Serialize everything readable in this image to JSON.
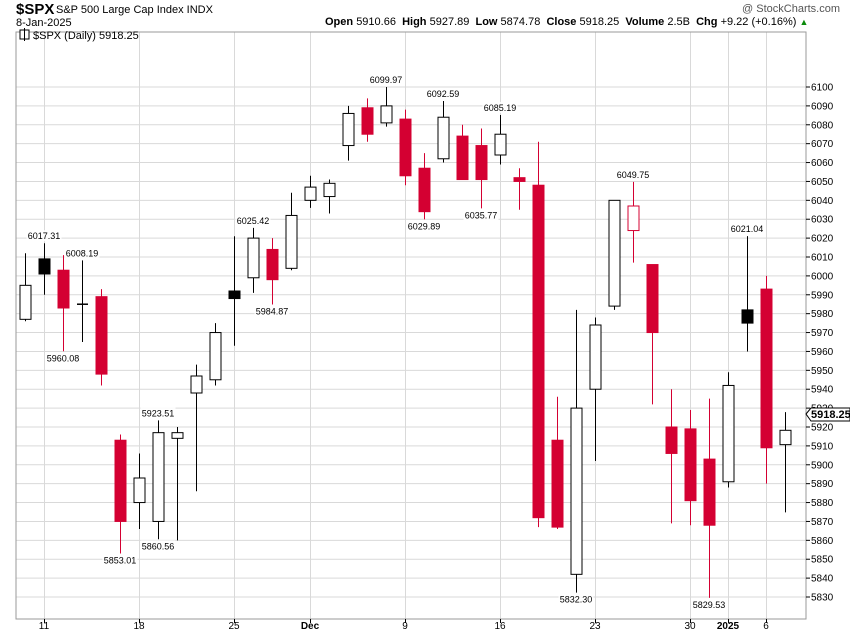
{
  "header": {
    "symbol": "$SPX",
    "description": "S&P 500 Large Cap Index  INDX",
    "credit": "@ StockCharts.com",
    "date": "8-Jan-2025",
    "open_label": "Open",
    "open": "5910.66",
    "high_label": "High",
    "high": "5927.89",
    "low_label": "Low",
    "low": "5874.78",
    "close_label": "Close",
    "close": "5918.25",
    "volume_label": "Volume",
    "volume": "2.5B",
    "chg_label": "Chg",
    "chg": "+9.22 (+0.16%)",
    "chg_icon": "up-triangle-icon"
  },
  "legend": "$SPX (Daily) 5918.25",
  "last_price_label": "5918.25",
  "colors": {
    "up": "#ffffff",
    "down": "#d40032",
    "neutral_filled": "#000000",
    "grid": "#d9d9d9"
  },
  "chart_data": {
    "type": "candlestick",
    "ylim": [
      5820,
      6110
    ],
    "y_ticks": [
      5830,
      5840,
      5850,
      5860,
      5870,
      5880,
      5890,
      5900,
      5910,
      5920,
      5930,
      5940,
      5950,
      5960,
      5970,
      5980,
      5990,
      6000,
      6010,
      6020,
      6030,
      6040,
      6050,
      6060,
      6070,
      6080,
      6090,
      6100
    ],
    "x_ticks": [
      {
        "label": "11",
        "index": 1
      },
      {
        "label": "18",
        "index": 6
      },
      {
        "label": "25",
        "index": 11
      },
      {
        "label": "Dec",
        "index": 15,
        "bold": true
      },
      {
        "label": "9",
        "index": 20
      },
      {
        "label": "16",
        "index": 25
      },
      {
        "label": "23",
        "index": 30
      },
      {
        "label": "30",
        "index": 35
      },
      {
        "label": "2025",
        "index": 37,
        "bold": true
      },
      {
        "label": "6",
        "index": 39
      }
    ],
    "candles": [
      {
        "date": "2024-11-08",
        "open": 5977,
        "high": 6012,
        "low": 5976,
        "close": 5995,
        "style": "hollow"
      },
      {
        "date": "2024-11-11",
        "open": 6009,
        "high": 6017.31,
        "low": 5990,
        "close": 6001,
        "style": "black"
      },
      {
        "date": "2024-11-12",
        "open": 6003,
        "high": 6011,
        "low": 5960.08,
        "close": 5983,
        "style": "red"
      },
      {
        "date": "2024-11-13",
        "open": 5985,
        "high": 6008.19,
        "low": 5965,
        "close": 5985,
        "style": "doji"
      },
      {
        "date": "2024-11-14",
        "open": 5989,
        "high": 5993,
        "low": 5942,
        "close": 5948,
        "style": "red"
      },
      {
        "date": "2024-11-15",
        "open": 5913,
        "high": 5916,
        "low": 5853.01,
        "close": 5870,
        "style": "red"
      },
      {
        "date": "2024-11-18",
        "open": 5880,
        "high": 5906,
        "low": 5866,
        "close": 5893,
        "style": "hollow"
      },
      {
        "date": "2024-11-19",
        "open": 5870,
        "high": 5923.51,
        "low": 5860.56,
        "close": 5917,
        "style": "hollow"
      },
      {
        "date": "2024-11-20",
        "open": 5914,
        "high": 5920,
        "low": 5860,
        "close": 5917,
        "style": "hollow"
      },
      {
        "date": "2024-11-21",
        "open": 5938,
        "high": 5953,
        "low": 5886,
        "close": 5947,
        "style": "hollow"
      },
      {
        "date": "2024-11-22",
        "open": 5945,
        "high": 5975,
        "low": 5942,
        "close": 5970,
        "style": "hollow"
      },
      {
        "date": "2024-11-25",
        "open": 5992,
        "high": 6021,
        "low": 5963,
        "close": 5988,
        "style": "black"
      },
      {
        "date": "2024-11-26",
        "open": 5999,
        "high": 6025.42,
        "low": 5991,
        "close": 6020,
        "style": "hollow"
      },
      {
        "date": "2024-11-27",
        "open": 6014,
        "high": 6020,
        "low": 5984.87,
        "close": 5998,
        "style": "red"
      },
      {
        "date": "2024-11-29",
        "open": 6004,
        "high": 6044,
        "low": 6003,
        "close": 6032,
        "style": "hollow"
      },
      {
        "date": "2024-12-02",
        "open": 6040,
        "high": 6053,
        "low": 6036,
        "close": 6047,
        "style": "hollow"
      },
      {
        "date": "2024-12-03",
        "open": 6042,
        "high": 6051,
        "low": 6033,
        "close": 6049,
        "style": "hollow"
      },
      {
        "date": "2024-12-04",
        "open": 6069,
        "high": 6090,
        "low": 6061,
        "close": 6086,
        "style": "hollow"
      },
      {
        "date": "2024-12-05",
        "open": 6089,
        "high": 6094,
        "low": 6071,
        "close": 6075,
        "style": "red"
      },
      {
        "date": "2024-12-06",
        "open": 6081,
        "high": 6099.97,
        "low": 6079,
        "close": 6090,
        "style": "hollow"
      },
      {
        "date": "2024-12-09",
        "open": 6083,
        "high": 6088,
        "low": 6048,
        "close": 6053,
        "style": "red"
      },
      {
        "date": "2024-12-10",
        "open": 6057,
        "high": 6065,
        "low": 6029.89,
        "close": 6034,
        "style": "red"
      },
      {
        "date": "2024-12-11",
        "open": 6062,
        "high": 6092.59,
        "low": 6060,
        "close": 6084,
        "style": "hollow"
      },
      {
        "date": "2024-12-12",
        "open": 6074,
        "high": 6080,
        "low": 6051,
        "close": 6051,
        "style": "red"
      },
      {
        "date": "2024-12-13",
        "open": 6069,
        "high": 6078,
        "low": 6035.77,
        "close": 6051,
        "style": "red"
      },
      {
        "date": "2024-12-16",
        "open": 6064,
        "high": 6085.19,
        "low": 6059,
        "close": 6075,
        "style": "hollow"
      },
      {
        "date": "2024-12-17",
        "open": 6052,
        "high": 6057,
        "low": 6035,
        "close": 6050,
        "style": "red"
      },
      {
        "date": "2024-12-18",
        "open": 6048,
        "high": 6071,
        "low": 5867,
        "close": 5872,
        "style": "red"
      },
      {
        "date": "2024-12-19",
        "open": 5913,
        "high": 5936,
        "low": 5866,
        "close": 5867,
        "style": "red"
      },
      {
        "date": "2024-12-20",
        "open": 5842,
        "high": 5982,
        "low": 5832.3,
        "close": 5930,
        "style": "hollow"
      },
      {
        "date": "2024-12-23",
        "open": 5940,
        "high": 5978,
        "low": 5902,
        "close": 5974,
        "style": "hollow"
      },
      {
        "date": "2024-12-24",
        "open": 5984,
        "high": 6040,
        "low": 5982,
        "close": 6040,
        "style": "hollow"
      },
      {
        "date": "2024-12-26",
        "open": 6037,
        "high": 6049.75,
        "low": 6007,
        "close": 6024,
        "style": "hollow-red"
      },
      {
        "date": "2024-12-27",
        "open": 6006,
        "high": 6006,
        "low": 5932,
        "close": 5970,
        "style": "red"
      },
      {
        "date": "2024-12-30",
        "open": 5920,
        "high": 5940,
        "low": 5869,
        "close": 5906,
        "style": "red"
      },
      {
        "date": "2024-12-31",
        "open": 5919,
        "high": 5929,
        "low": 5868,
        "close": 5881,
        "style": "red"
      },
      {
        "date": "2025-01-02",
        "open": 5903,
        "high": 5935,
        "low": 5829.53,
        "close": 5868,
        "style": "red"
      },
      {
        "date": "2025-01-03",
        "open": 5891,
        "high": 5949,
        "low": 5888,
        "close": 5942,
        "style": "hollow"
      },
      {
        "date": "2025-01-06",
        "open": 5982,
        "high": 6021.04,
        "low": 5960,
        "close": 5975,
        "style": "black"
      },
      {
        "date": "2025-01-07",
        "open": 5993,
        "high": 6000,
        "low": 5890,
        "close": 5909,
        "style": "red"
      },
      {
        "date": "2025-01-08",
        "open": 5910.66,
        "high": 5927.89,
        "low": 5874.78,
        "close": 5918.25,
        "style": "hollow"
      }
    ],
    "annotations": [
      {
        "text": "6017.31",
        "index": 1,
        "value": 6017.31,
        "pos": "above"
      },
      {
        "text": "5960.08",
        "index": 2,
        "value": 5960.08,
        "pos": "below"
      },
      {
        "text": "6008.19",
        "index": 3,
        "value": 6008.19,
        "pos": "above"
      },
      {
        "text": "5853.01",
        "index": 5,
        "value": 5853.01,
        "pos": "below"
      },
      {
        "text": "5923.51",
        "index": 7,
        "value": 5923.51,
        "pos": "above"
      },
      {
        "text": "5860.56",
        "index": 7,
        "value": 5860.56,
        "pos": "below"
      },
      {
        "text": "6025.42",
        "index": 12,
        "value": 6025.42,
        "pos": "above"
      },
      {
        "text": "5984.87",
        "index": 13,
        "value": 5984.87,
        "pos": "below"
      },
      {
        "text": "6099.97",
        "index": 19,
        "value": 6099.97,
        "pos": "above"
      },
      {
        "text": "6029.89",
        "index": 21,
        "value": 6029.89,
        "pos": "below"
      },
      {
        "text": "6092.59",
        "index": 22,
        "value": 6092.59,
        "pos": "above"
      },
      {
        "text": "6035.77",
        "index": 24,
        "value": 6035.77,
        "pos": "below"
      },
      {
        "text": "6085.19",
        "index": 25,
        "value": 6085.19,
        "pos": "above"
      },
      {
        "text": "5832.30",
        "index": 29,
        "value": 5832.3,
        "pos": "below"
      },
      {
        "text": "6049.75",
        "index": 32,
        "value": 6049.75,
        "pos": "above"
      },
      {
        "text": "5829.53",
        "index": 36,
        "value": 5829.53,
        "pos": "below"
      },
      {
        "text": "6021.04",
        "index": 38,
        "value": 6021.04,
        "pos": "above"
      }
    ]
  }
}
